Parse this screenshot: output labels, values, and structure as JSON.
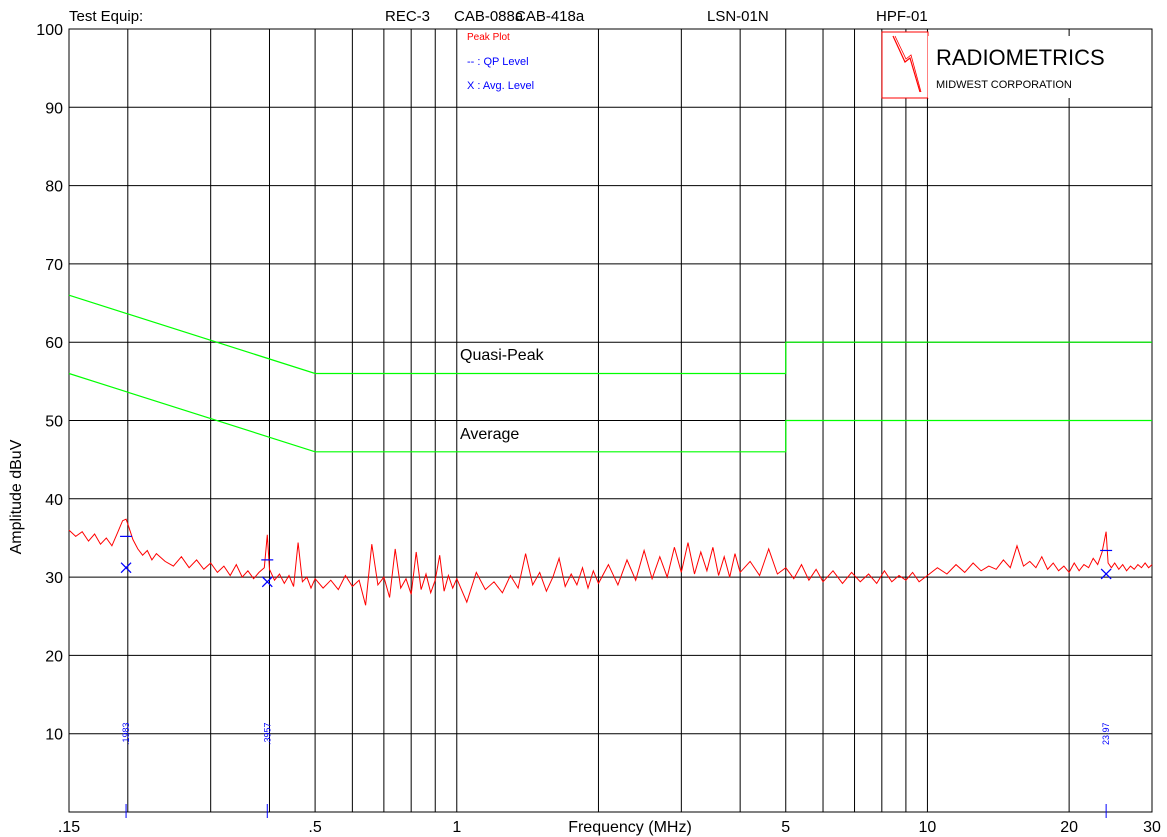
{
  "header": {
    "test_equip_label": "Test Equip:",
    "equipment": [
      "REC-3",
      "CAB-088a",
      "CAB-418a",
      "LSN-01N",
      "HPF-01"
    ]
  },
  "legend": {
    "peak": "Peak Plot",
    "qp": "-- : QP Level",
    "avg": "X : Avg. Level"
  },
  "logo": {
    "name": "RADIOMETRICS",
    "sub": "MIDWEST CORPORATION"
  },
  "colors": {
    "trace": "#ff0000",
    "limits": "#00ff00",
    "markers": "#0000ff",
    "grid": "#000000"
  },
  "chart_data": {
    "type": "line",
    "xlabel": "Frequency (MHz)",
    "ylabel": "Amplitude dBuV",
    "x_scale": "log",
    "xlim": [
      0.15,
      30
    ],
    "ylim": [
      0,
      100
    ],
    "x_tick_labels": [
      {
        "value": 0.15,
        "label": ".15"
      },
      {
        "value": 0.5,
        "label": ".5"
      },
      {
        "value": 1,
        "label": "1"
      },
      {
        "value": 5,
        "label": "5"
      },
      {
        "value": 10,
        "label": "10"
      },
      {
        "value": 20,
        "label": "20"
      },
      {
        "value": 30,
        "label": "30"
      }
    ],
    "x_gridlines": [
      0.2,
      0.3,
      0.4,
      0.5,
      0.6,
      0.7,
      0.8,
      0.9,
      1,
      2,
      3,
      4,
      5,
      6,
      7,
      8,
      9,
      10,
      20,
      30
    ],
    "y_ticks": [
      10,
      20,
      30,
      40,
      50,
      60,
      70,
      80,
      90,
      100
    ],
    "limits": [
      {
        "name": "Quasi-Peak",
        "points": [
          [
            0.15,
            66
          ],
          [
            0.5,
            56
          ],
          [
            5,
            56
          ],
          [
            5,
            60
          ],
          [
            30,
            60
          ]
        ]
      },
      {
        "name": "Average",
        "points": [
          [
            0.15,
            56
          ],
          [
            0.5,
            46
          ],
          [
            5,
            46
          ],
          [
            5,
            50
          ],
          [
            30,
            50
          ]
        ]
      }
    ],
    "peak_series": {
      "name": "Peak Plot",
      "points": [
        [
          0.15,
          36.0
        ],
        [
          0.155,
          35.2
        ],
        [
          0.16,
          35.8
        ],
        [
          0.165,
          34.6
        ],
        [
          0.17,
          35.5
        ],
        [
          0.175,
          34.2
        ],
        [
          0.18,
          35.0
        ],
        [
          0.185,
          34.0
        ],
        [
          0.19,
          35.6
        ],
        [
          0.195,
          37.2
        ],
        [
          0.1983,
          37.4
        ],
        [
          0.2,
          36.8
        ],
        [
          0.205,
          34.8
        ],
        [
          0.21,
          33.6
        ],
        [
          0.215,
          32.8
        ],
        [
          0.22,
          33.4
        ],
        [
          0.225,
          32.2
        ],
        [
          0.23,
          33.0
        ],
        [
          0.24,
          32.0
        ],
        [
          0.25,
          31.4
        ],
        [
          0.26,
          32.6
        ],
        [
          0.27,
          31.2
        ],
        [
          0.28,
          32.2
        ],
        [
          0.29,
          31.0
        ],
        [
          0.3,
          31.8
        ],
        [
          0.31,
          30.6
        ],
        [
          0.32,
          31.4
        ],
        [
          0.33,
          30.2
        ],
        [
          0.34,
          31.6
        ],
        [
          0.35,
          30.0
        ],
        [
          0.36,
          30.8
        ],
        [
          0.37,
          29.8
        ],
        [
          0.38,
          30.6
        ],
        [
          0.39,
          31.2
        ],
        [
          0.3957,
          35.4
        ],
        [
          0.4,
          31.0
        ],
        [
          0.41,
          29.6
        ],
        [
          0.42,
          30.4
        ],
        [
          0.43,
          29.2
        ],
        [
          0.44,
          30.2
        ],
        [
          0.45,
          28.8
        ],
        [
          0.46,
          34.4
        ],
        [
          0.47,
          29.4
        ],
        [
          0.48,
          30.0
        ],
        [
          0.49,
          28.6
        ],
        [
          0.5,
          29.8
        ],
        [
          0.52,
          28.6
        ],
        [
          0.54,
          29.6
        ],
        [
          0.56,
          28.4
        ],
        [
          0.58,
          30.2
        ],
        [
          0.6,
          28.8
        ],
        [
          0.62,
          29.6
        ],
        [
          0.64,
          26.4
        ],
        [
          0.66,
          34.2
        ],
        [
          0.68,
          29.0
        ],
        [
          0.7,
          30.0
        ],
        [
          0.72,
          27.4
        ],
        [
          0.74,
          33.6
        ],
        [
          0.76,
          28.6
        ],
        [
          0.78,
          29.8
        ],
        [
          0.8,
          27.8
        ],
        [
          0.82,
          33.2
        ],
        [
          0.84,
          28.4
        ],
        [
          0.86,
          30.4
        ],
        [
          0.88,
          28.0
        ],
        [
          0.9,
          29.6
        ],
        [
          0.92,
          32.8
        ],
        [
          0.94,
          28.2
        ],
        [
          0.96,
          30.2
        ],
        [
          0.98,
          28.6
        ],
        [
          1.0,
          29.8
        ],
        [
          1.05,
          26.8
        ],
        [
          1.1,
          30.6
        ],
        [
          1.15,
          28.4
        ],
        [
          1.2,
          29.4
        ],
        [
          1.25,
          28.0
        ],
        [
          1.3,
          30.2
        ],
        [
          1.35,
          28.6
        ],
        [
          1.4,
          33.0
        ],
        [
          1.45,
          29.0
        ],
        [
          1.5,
          30.6
        ],
        [
          1.55,
          28.2
        ],
        [
          1.6,
          30.0
        ],
        [
          1.65,
          32.4
        ],
        [
          1.7,
          28.8
        ],
        [
          1.75,
          30.4
        ],
        [
          1.8,
          29.0
        ],
        [
          1.85,
          31.2
        ],
        [
          1.9,
          28.6
        ],
        [
          1.95,
          30.8
        ],
        [
          2.0,
          29.2
        ],
        [
          2.1,
          31.6
        ],
        [
          2.2,
          29.0
        ],
        [
          2.3,
          32.2
        ],
        [
          2.4,
          29.6
        ],
        [
          2.5,
          33.4
        ],
        [
          2.6,
          29.8
        ],
        [
          2.7,
          32.6
        ],
        [
          2.8,
          30.0
        ],
        [
          2.9,
          33.8
        ],
        [
          3.0,
          30.6
        ],
        [
          3.1,
          34.4
        ],
        [
          3.2,
          30.4
        ],
        [
          3.3,
          33.2
        ],
        [
          3.4,
          30.8
        ],
        [
          3.5,
          33.8
        ],
        [
          3.6,
          30.2
        ],
        [
          3.7,
          32.6
        ],
        [
          3.8,
          30.0
        ],
        [
          3.9,
          33.0
        ],
        [
          4.0,
          30.6
        ],
        [
          4.2,
          32.0
        ],
        [
          4.4,
          30.2
        ],
        [
          4.6,
          33.6
        ],
        [
          4.8,
          30.4
        ],
        [
          5.0,
          31.2
        ],
        [
          5.2,
          29.8
        ],
        [
          5.4,
          31.6
        ],
        [
          5.6,
          29.6
        ],
        [
          5.8,
          31.0
        ],
        [
          6.0,
          29.4
        ],
        [
          6.3,
          30.8
        ],
        [
          6.6,
          29.2
        ],
        [
          6.9,
          30.6
        ],
        [
          7.2,
          29.4
        ],
        [
          7.5,
          30.4
        ],
        [
          7.8,
          29.2
        ],
        [
          8.1,
          30.8
        ],
        [
          8.4,
          29.4
        ],
        [
          8.7,
          30.2
        ],
        [
          9.0,
          29.6
        ],
        [
          9.3,
          30.6
        ],
        [
          9.6,
          29.4
        ],
        [
          10.0,
          30.2
        ],
        [
          10.5,
          31.2
        ],
        [
          11.0,
          30.4
        ],
        [
          11.5,
          31.6
        ],
        [
          12.0,
          30.6
        ],
        [
          12.5,
          31.8
        ],
        [
          13.0,
          30.8
        ],
        [
          13.5,
          31.4
        ],
        [
          14.0,
          31.0
        ],
        [
          14.5,
          32.2
        ],
        [
          15.0,
          31.2
        ],
        [
          15.5,
          34.0
        ],
        [
          16.0,
          31.4
        ],
        [
          16.5,
          32.0
        ],
        [
          17.0,
          31.2
        ],
        [
          17.5,
          32.6
        ],
        [
          18.0,
          31.0
        ],
        [
          18.5,
          31.8
        ],
        [
          19.0,
          30.8
        ],
        [
          19.5,
          31.4
        ],
        [
          20.0,
          30.6
        ],
        [
          20.5,
          31.8
        ],
        [
          21.0,
          30.8
        ],
        [
          21.5,
          31.6
        ],
        [
          22.0,
          31.2
        ],
        [
          22.5,
          32.4
        ],
        [
          23.0,
          31.6
        ],
        [
          23.5,
          33.2
        ],
        [
          23.97,
          35.8
        ],
        [
          24.2,
          31.8
        ],
        [
          24.6,
          31.2
        ],
        [
          25.0,
          31.8
        ],
        [
          25.5,
          31.0
        ],
        [
          26.0,
          31.6
        ],
        [
          26.5,
          30.8
        ],
        [
          27.0,
          31.4
        ],
        [
          27.5,
          31.0
        ],
        [
          28.0,
          31.6
        ],
        [
          28.5,
          31.2
        ],
        [
          29.0,
          31.8
        ],
        [
          29.5,
          31.2
        ],
        [
          30.0,
          31.6
        ]
      ]
    },
    "qp_markers": [
      [
        0.1983,
        35.2
      ],
      [
        0.3957,
        32.2
      ],
      [
        23.97,
        33.4
      ]
    ],
    "avg_markers": [
      [
        0.1983,
        31.2
      ],
      [
        0.3957,
        29.4
      ],
      [
        23.97,
        30.4
      ]
    ],
    "marker_labels": [
      {
        "freq": 0.1983,
        "label": ".1983"
      },
      {
        "freq": 0.3957,
        "label": ".3957"
      },
      {
        "freq": 23.97,
        "label": "23.97"
      }
    ],
    "annotations": [
      {
        "text": "Quasi-Peak",
        "x": 1.0,
        "y": 58.0
      },
      {
        "text": "Average",
        "x": 1.0,
        "y": 48.0
      }
    ]
  }
}
